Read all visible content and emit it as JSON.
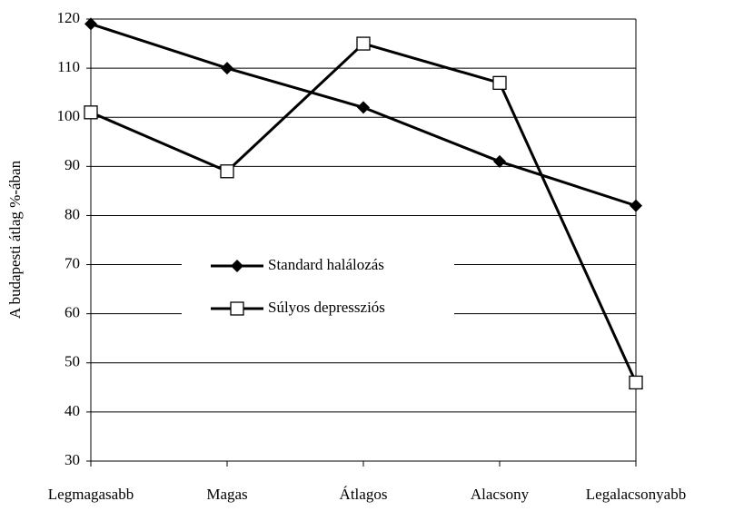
{
  "chart_data": {
    "type": "line",
    "y_label": "A budapesti átlag %-ában",
    "categories": [
      "Legmagasabb",
      "Magas",
      "Átlagos",
      "Alacsony",
      "Legalacsonyabb"
    ],
    "series": [
      {
        "name": "Standard halálozás",
        "color": "#000000",
        "marker": "diamond",
        "values": [
          119,
          110,
          102,
          91,
          82
        ]
      },
      {
        "name": "Súlyos depressziós",
        "color": "#000000",
        "marker": "square",
        "values": [
          101,
          89,
          115,
          107,
          46
        ]
      }
    ],
    "ylim": [
      30,
      120
    ],
    "yticks": [
      30,
      40,
      50,
      60,
      70,
      80,
      90,
      100,
      110,
      120
    ],
    "grid": true
  }
}
